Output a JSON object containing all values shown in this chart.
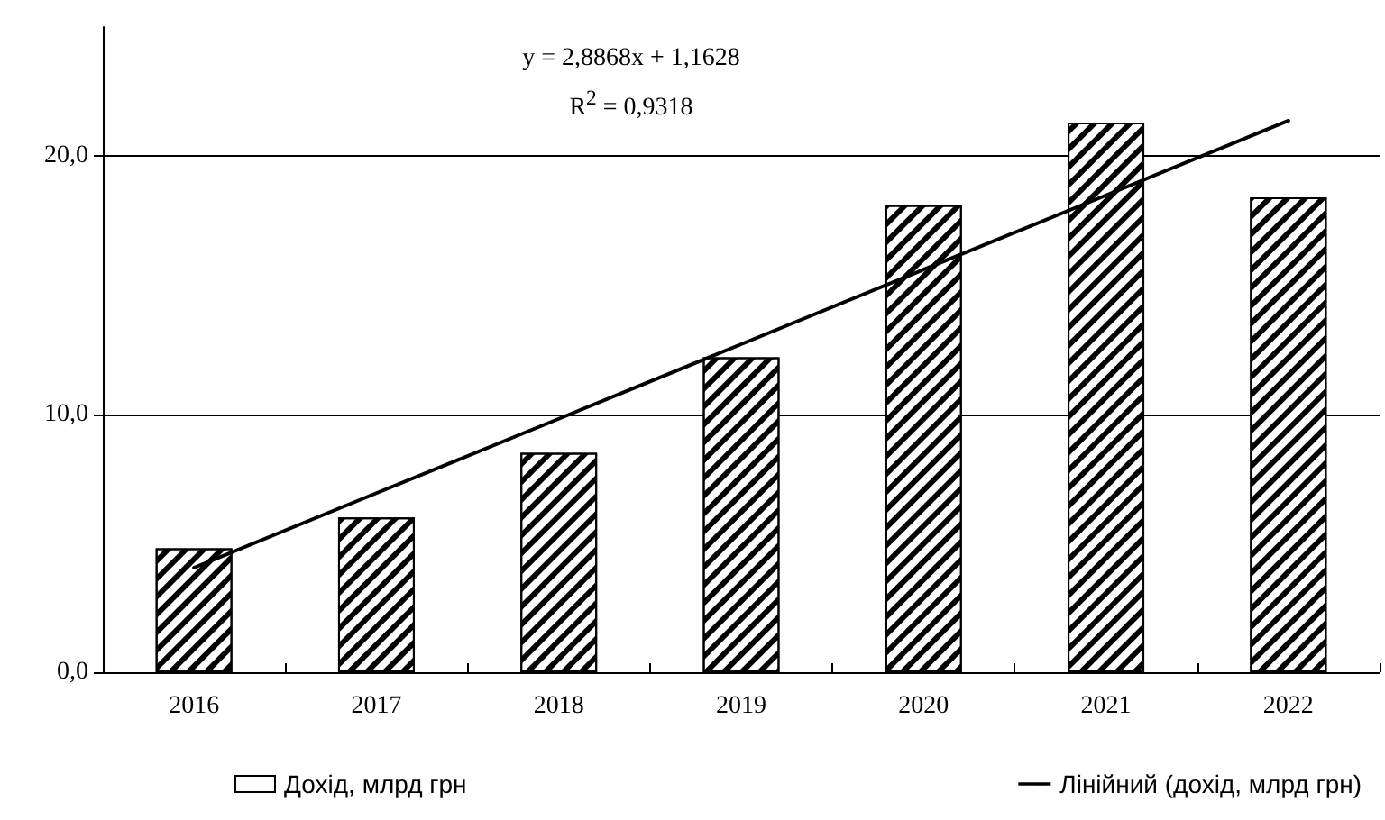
{
  "chart_data": {
    "type": "bar",
    "categories": [
      "2016",
      "2017",
      "2018",
      "2019",
      "2020",
      "2021",
      "2022"
    ],
    "series": [
      {
        "name": "Дохід, млрд грн",
        "color": "#000000",
        "values": [
          4.8,
          6.0,
          8.5,
          12.2,
          18.1,
          21.3,
          18.4
        ]
      },
      {
        "name": "Лінійний (дохід, млрд грн)",
        "type": "line",
        "color": "#000000",
        "values": [
          4.05,
          6.94,
          9.82,
          12.71,
          15.6,
          18.48,
          21.37
        ]
      }
    ],
    "annotations": [
      "y = 2,8868x + 1,1628",
      "R$^{2}$ = 0,9318"
    ],
    "ylim": [
      0,
      25
    ],
    "yticks": [
      {
        "value": 0,
        "label": "0,0"
      },
      {
        "value": 10,
        "label": "10,0"
      },
      {
        "value": 20,
        "label": "20,0"
      }
    ],
    "grid": "y",
    "legend": "bottom",
    "marker": "none",
    "line_style": "solid"
  }
}
